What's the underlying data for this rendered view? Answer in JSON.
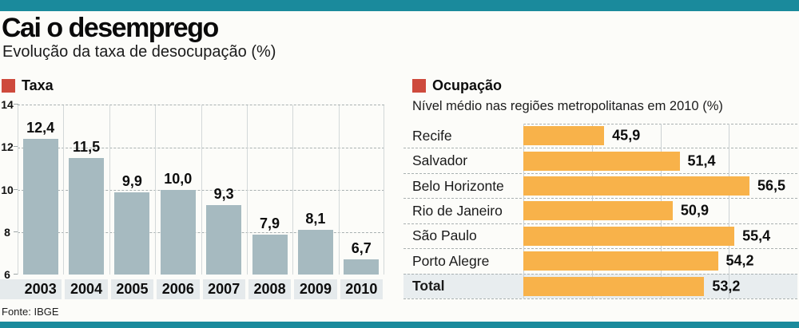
{
  "header": {
    "title": "Cai o desemprego",
    "subtitle": "Evolução da taxa de desocupação (%)"
  },
  "footer": {
    "source": "Fonte: IBGE"
  },
  "colors": {
    "accent_teal": "#1A8A9C",
    "legend_red": "#CE4A3D",
    "taxa_bar": "#A6BAC0",
    "ocup_bar": "#F8B24A",
    "highlight_row_bg": "#E8EDEF",
    "axis_strip_bg": "#E5EAEC"
  },
  "chart_data": [
    {
      "type": "bar",
      "orientation": "vertical",
      "title": "Taxa",
      "categories": [
        "2003",
        "2004",
        "2005",
        "2006",
        "2007",
        "2008",
        "2009",
        "2010"
      ],
      "values": [
        12.4,
        11.5,
        9.9,
        10.0,
        9.3,
        7.9,
        8.1,
        6.7
      ],
      "value_labels": [
        "12,4",
        "11,5",
        "9,9",
        "10,0",
        "9,3",
        "7,9",
        "8,1",
        "6,7"
      ],
      "ylim": [
        6,
        14
      ],
      "yticks": [
        "14",
        "12",
        "10",
        "8",
        "6"
      ],
      "grid": "horizontal dashed gridlines, vertical solid column separators",
      "legend_position": "top-left"
    },
    {
      "type": "bar",
      "orientation": "horizontal",
      "title": "Ocupação",
      "subtitle": "Nível médio nas regiões metropolitanas em 2010 (%)",
      "categories": [
        "Recife",
        "Salvador",
        "Belo Horizonte",
        "Rio de Janeiro",
        "São Paulo",
        "Porto Alegre",
        "Total"
      ],
      "values": [
        45.9,
        51.4,
        56.5,
        50.9,
        55.4,
        54.2,
        53.2
      ],
      "value_labels": [
        "45,9",
        "51,4",
        "56,5",
        "50,9",
        "55,4",
        "54,2",
        "53,2"
      ],
      "xlim": [
        40,
        60
      ],
      "gridline_values": [
        40,
        45,
        50,
        55
      ],
      "grid": "horizontal dashed row separators, vertical solid gridlines",
      "highlight_row": "Total"
    }
  ]
}
